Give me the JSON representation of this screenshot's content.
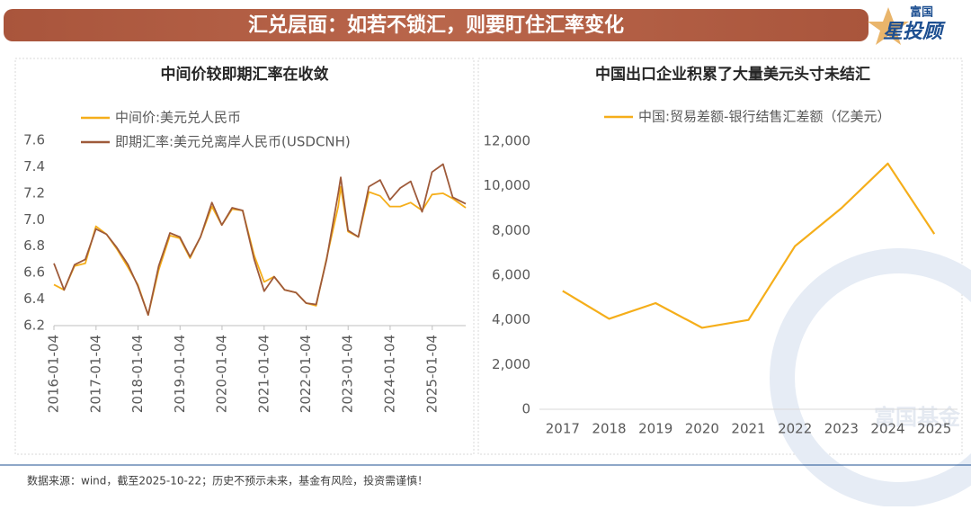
{
  "header": {
    "title": "汇兑层面：如若不锁汇，则要盯住汇率变化"
  },
  "logo": {
    "top": "富国",
    "bottom": "星投顾"
  },
  "chart_data": [
    {
      "type": "line",
      "title": "中间价较即期汇率在收敛",
      "x": [
        "2016-01-04",
        "2016-04-01",
        "2016-07-01",
        "2016-10-03",
        "2017-01-03",
        "2017-04-05",
        "2017-07-03",
        "2017-10-09",
        "2018-01-02",
        "2018-04-02",
        "2018-07-02",
        "2018-10-08",
        "2019-01-02",
        "2019-04-01",
        "2019-07-01",
        "2019-10-08",
        "2020-01-02",
        "2020-04-01",
        "2020-07-01",
        "2020-10-09",
        "2021-01-04",
        "2021-04-01",
        "2021-07-01",
        "2021-10-08",
        "2022-01-04",
        "2022-04-01",
        "2022-07-01",
        "2022-10-10",
        "2022-11-01",
        "2023-01-03",
        "2023-04-03",
        "2023-07-03",
        "2023-10-09",
        "2024-01-02",
        "2024-04-01",
        "2024-07-01",
        "2024-10-08",
        "2025-01-02",
        "2025-04-08",
        "2025-07-01",
        "2025-10-22"
      ],
      "series": [
        {
          "name": "中间价:美元兑人民币",
          "color": "#f5ae1a",
          "values": [
            6.51,
            6.47,
            6.65,
            6.67,
            6.95,
            6.89,
            6.78,
            6.64,
            6.51,
            6.28,
            6.62,
            6.88,
            6.86,
            6.71,
            6.87,
            7.1,
            6.96,
            7.08,
            7.07,
            6.73,
            6.53,
            6.57,
            6.47,
            6.45,
            6.37,
            6.35,
            6.71,
            7.1,
            7.25,
            6.91,
            6.87,
            7.21,
            7.18,
            7.1,
            7.1,
            7.13,
            7.07,
            7.19,
            7.2,
            7.16,
            7.09
          ]
        },
        {
          "name": "即期汇率:美元兑离岸人民币(USDCNH)",
          "color": "#9e5a3a",
          "values": [
            6.67,
            6.47,
            6.66,
            6.7,
            6.93,
            6.89,
            6.79,
            6.66,
            6.5,
            6.28,
            6.65,
            6.9,
            6.87,
            6.72,
            6.87,
            7.13,
            6.96,
            7.09,
            7.07,
            6.7,
            6.46,
            6.57,
            6.47,
            6.45,
            6.37,
            6.36,
            6.7,
            7.2,
            7.32,
            6.92,
            6.87,
            7.25,
            7.3,
            7.15,
            7.24,
            7.29,
            7.06,
            7.36,
            7.42,
            7.17,
            7.12
          ]
        }
      ],
      "xlim": [
        "2016-01-04",
        "2025-10-22"
      ],
      "xticks": [
        "2016-01-04",
        "2017-01-04",
        "2018-01-04",
        "2019-01-04",
        "2020-01-04",
        "2021-01-04",
        "2022-01-04",
        "2023-01-04",
        "2024-01-04",
        "2025-01-04"
      ],
      "ylim": [
        6.2,
        7.6
      ],
      "yticks": [
        6.2,
        6.4,
        6.6,
        6.8,
        {
          "value": 7,
          "label": "7.0"
        },
        7.2,
        7.4,
        7.6
      ]
    },
    {
      "type": "line",
      "title": "中国出口企业积累了大量美元头寸未结汇",
      "categories": [
        "2017",
        "2018",
        "2019",
        "2020",
        "2021",
        "2022",
        "2023",
        "2024",
        "2025"
      ],
      "series": [
        {
          "name": "中国:贸易差额-银行结售汇差额（亿美元）",
          "color": "#f5ae1a",
          "values": [
            5300,
            4050,
            4750,
            3650,
            4000,
            7300,
            9000,
            11000,
            7850
          ]
        }
      ],
      "ylim": [
        0,
        12000
      ],
      "yticks": [
        0,
        {
          "value": 2000,
          "label": "2,000"
        },
        {
          "value": 4000,
          "label": "4,000"
        },
        {
          "value": 6000,
          "label": "6,000"
        },
        {
          "value": 8000,
          "label": "8,000"
        },
        {
          "value": 10000,
          "label": "10,000"
        },
        {
          "value": 12000,
          "label": "12,000"
        }
      ]
    }
  ],
  "watermark": "富国基金",
  "footer": "数据来源：wind，截至2025-10-22；历史不预示未来，基金有风险，投资需谨慎！"
}
